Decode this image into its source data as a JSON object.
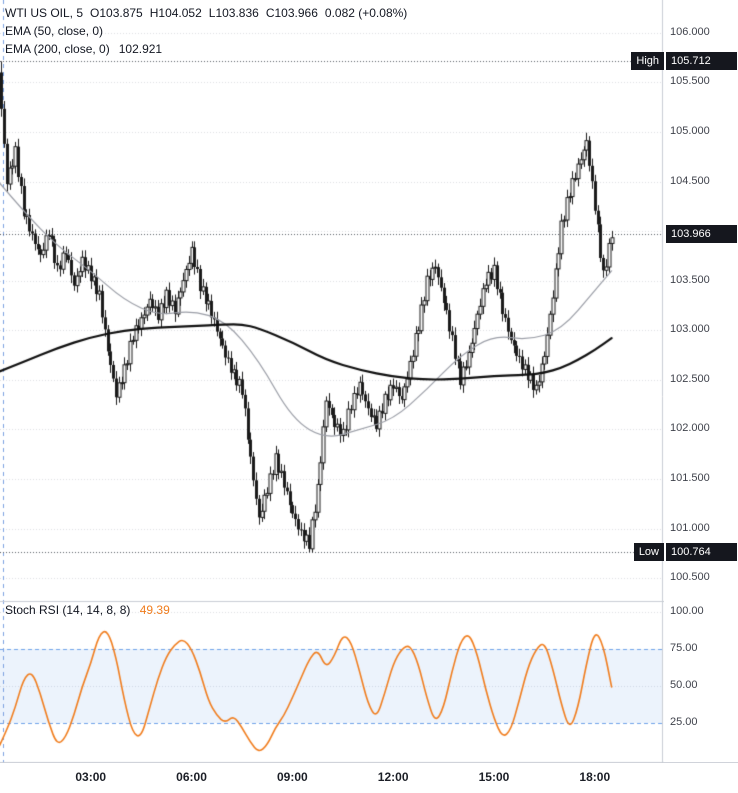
{
  "header": {
    "symbol": "WTI US OIL, 5",
    "open": "O103.875",
    "high": "H104.052",
    "low": "L103.836",
    "close": "C103.966",
    "change": "0.082 (+0.08%)"
  },
  "indicators": [
    {
      "label": "EMA (50, close, 0)",
      "value": ""
    },
    {
      "label": "EMA (200, close, 0)",
      "value": "102.921"
    }
  ],
  "stoch": {
    "label": "Stoch RSI (14, 14, 8, 8)",
    "value": "49.39"
  },
  "price_axis": {
    "ticks": [
      {
        "label": "106.000",
        "value": 106.0
      },
      {
        "label": "105.500",
        "value": 105.5
      },
      {
        "label": "105.000",
        "value": 105.0
      },
      {
        "label": "104.500",
        "value": 104.5
      },
      {
        "label": "",
        "value": 104.0
      },
      {
        "label": "103.500",
        "value": 103.5
      },
      {
        "label": "103.000",
        "value": 103.0
      },
      {
        "label": "102.500",
        "value": 102.5
      },
      {
        "label": "102.000",
        "value": 102.0
      },
      {
        "label": "101.500",
        "value": 101.5
      },
      {
        "label": "101.000",
        "value": 101.0
      },
      {
        "label": "100.500",
        "value": 100.5
      }
    ],
    "badges": {
      "high": {
        "label": "High",
        "text": "105.712",
        "price": 105.712
      },
      "last": {
        "text": "103.966",
        "price": 103.966
      },
      "low": {
        "label": "Low",
        "text": "100.764",
        "price": 100.764
      }
    }
  },
  "stoch_axis": {
    "ticks": [
      {
        "label": "100.00",
        "value": 100
      },
      {
        "label": "75.00",
        "value": 75
      },
      {
        "label": "50.00",
        "value": 50
      },
      {
        "label": "25.00",
        "value": 25
      }
    ]
  },
  "time_axis": {
    "ticks": [
      {
        "label": "03:00",
        "hour": 3
      },
      {
        "label": "06:00",
        "hour": 6
      },
      {
        "label": "09:00",
        "hour": 9
      },
      {
        "label": "12:00",
        "hour": 12
      },
      {
        "label": "15:00",
        "hour": 15
      },
      {
        "label": "18:00",
        "hour": 18
      }
    ]
  },
  "colors": {
    "candle": "#1b1b1b",
    "ema200": "#101010",
    "ema50": "#9a9da6",
    "grid": "#dcdee2",
    "level_line": "#555a63",
    "session_line": "#7ba0e0",
    "band_fill": "rgba(112,163,232,0.13)",
    "band_edge": "#6fa2e8",
    "stoch_line": "#f07d1e",
    "border": "#c9cdd4",
    "badge_bg": "#15171e"
  },
  "chart_data": [
    {
      "type": "candlestick",
      "title": "WTI US OIL, 5 minute",
      "interval_min": 5,
      "xlim_hours": [
        0.3,
        20.0
      ],
      "ylim": [
        100.3,
        106.25
      ],
      "session_line_hour": 0.4,
      "closes_15min": {
        "start_hour": 0.25,
        "step_hour": 0.25,
        "values": [
          105.6,
          104.5,
          104.8,
          104.2,
          103.95,
          103.75,
          104.0,
          103.6,
          103.8,
          103.45,
          103.7,
          103.55,
          103.35,
          102.8,
          102.35,
          102.6,
          102.95,
          103.1,
          103.3,
          103.15,
          103.35,
          103.2,
          103.5,
          103.8,
          103.45,
          103.25,
          103.0,
          102.75,
          102.55,
          102.4,
          101.7,
          101.1,
          101.4,
          101.7,
          101.45,
          101.15,
          100.95,
          100.85,
          101.4,
          102.3,
          102.05,
          101.95,
          102.25,
          102.45,
          102.2,
          102.05,
          102.3,
          102.45,
          102.3,
          102.65,
          103.05,
          103.5,
          103.65,
          103.3,
          102.9,
          102.5,
          102.75,
          103.15,
          103.5,
          103.6,
          103.2,
          102.9,
          102.7,
          102.55,
          102.4,
          102.75,
          103.35,
          104.05,
          104.4,
          104.65,
          104.9,
          104.25,
          103.55,
          103.97
        ]
      },
      "extremes": {
        "high": {
          "hour": 0.35,
          "price": 105.712
        },
        "low": {
          "hour": 9.5,
          "price": 100.764
        }
      },
      "levels": [
        {
          "name": "high",
          "price": 105.712
        },
        {
          "name": "last",
          "price": 103.966
        },
        {
          "name": "low",
          "price": 100.764
        }
      ],
      "series": [
        {
          "name": "EMA 50",
          "x": [
            0.25,
            1,
            2,
            3,
            4,
            5,
            6,
            7,
            8,
            9,
            10,
            11,
            12,
            13,
            14,
            15,
            16,
            17,
            18,
            18.5
          ],
          "y": [
            104.5,
            104.2,
            103.85,
            103.6,
            103.3,
            103.15,
            103.2,
            103.1,
            102.7,
            102.1,
            101.9,
            102.0,
            102.1,
            102.4,
            102.75,
            102.95,
            102.9,
            103.0,
            103.4,
            103.6
          ]
        },
        {
          "name": "EMA 200",
          "last_value": 102.921,
          "x": [
            0.25,
            1,
            2,
            3,
            4,
            5,
            6,
            7,
            7.5,
            8,
            9,
            10,
            11,
            12,
            13,
            14,
            15,
            16,
            16.5,
            17,
            17.5,
            18,
            18.5
          ],
          "y": [
            102.58,
            102.68,
            102.82,
            102.93,
            103.0,
            103.03,
            103.04,
            103.06,
            103.06,
            103.02,
            102.88,
            102.7,
            102.6,
            102.53,
            102.5,
            102.51,
            102.54,
            102.55,
            102.57,
            102.62,
            102.7,
            102.8,
            102.92
          ]
        }
      ]
    },
    {
      "type": "line",
      "name": "Stoch RSI (14, 14, 8, 8)",
      "last_value": 49.39,
      "ylim": [
        0,
        100
      ],
      "band": [
        25,
        75
      ],
      "x_start_hour": 0.25,
      "x_step_hour": 0.25,
      "values": [
        8,
        20,
        35,
        55,
        60,
        45,
        25,
        10,
        15,
        30,
        50,
        65,
        85,
        88,
        70,
        40,
        18,
        15,
        35,
        55,
        70,
        78,
        82,
        75,
        60,
        40,
        30,
        25,
        30,
        22,
        12,
        5,
        10,
        22,
        30,
        42,
        55,
        68,
        75,
        62,
        70,
        85,
        80,
        60,
        38,
        28,
        45,
        65,
        75,
        78,
        65,
        42,
        25,
        35,
        60,
        80,
        86,
        72,
        48,
        28,
        15,
        20,
        40,
        62,
        75,
        80,
        62,
        38,
        20,
        35,
        65,
        88,
        78,
        49.39
      ]
    }
  ],
  "render": {
    "candle_step_hour": 0.083333,
    "wiggle": 0.055
  }
}
